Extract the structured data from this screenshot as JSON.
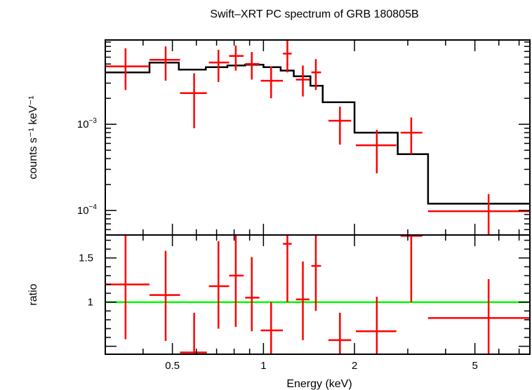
{
  "chart_data": {
    "type": "scatter",
    "title": "Swift–XRT PC spectrum of GRB 180805B",
    "xlabel": "Energy (keV)",
    "xscale": "log",
    "xlim": [
      0.3,
      7.6
    ],
    "xticks": [
      {
        "value": 0.5,
        "label": "0.5"
      },
      {
        "value": 1,
        "label": "1"
      },
      {
        "value": 2,
        "label": "2"
      },
      {
        "value": 5,
        "label": "5"
      }
    ],
    "colors": {
      "data": "#ff0000",
      "model": "#000000",
      "unity": "#00ff00"
    },
    "panels": [
      {
        "name": "spectrum",
        "ylabel": "counts s⁻¹ keV⁻¹",
        "yscale": "log",
        "ylim": [
          5.2e-05,
          0.0095
        ],
        "yticks": [
          {
            "value": 0.001,
            "mantissa": "10",
            "exponent": "−3"
          },
          {
            "value": 0.0001,
            "mantissa": "10",
            "exponent": "−4"
          }
        ],
        "data": [
          {
            "x": 0.35,
            "xlo": 0.3,
            "xhi": 0.42,
            "y": 0.0047,
            "ylo": 0.0025,
            "yhi": 0.0076
          },
          {
            "x": 0.475,
            "xlo": 0.42,
            "xhi": 0.53,
            "y": 0.0056,
            "ylo": 0.0032,
            "yhi": 0.008
          },
          {
            "x": 0.59,
            "xlo": 0.53,
            "xhi": 0.65,
            "y": 0.0023,
            "ylo": 0.0009,
            "yhi": 0.0039
          },
          {
            "x": 0.71,
            "xlo": 0.66,
            "xhi": 0.77,
            "y": 0.0052,
            "ylo": 0.0031,
            "yhi": 0.0073
          },
          {
            "x": 0.81,
            "xlo": 0.77,
            "xhi": 0.86,
            "y": 0.0062,
            "ylo": 0.0042,
            "yhi": 0.0082
          },
          {
            "x": 0.915,
            "xlo": 0.87,
            "xhi": 0.97,
            "y": 0.005,
            "ylo": 0.0033,
            "yhi": 0.0069
          },
          {
            "x": 1.06,
            "xlo": 0.98,
            "xhi": 1.16,
            "y": 0.0032,
            "ylo": 0.002,
            "yhi": 0.0047
          },
          {
            "x": 1.2,
            "xlo": 1.16,
            "xhi": 1.24,
            "y": 0.0066,
            "ylo": 0.004,
            "yhi": 0.0095
          },
          {
            "x": 1.35,
            "xlo": 1.28,
            "xhi": 1.42,
            "y": 0.0033,
            "ylo": 0.0021,
            "yhi": 0.0048
          },
          {
            "x": 1.49,
            "xlo": 1.44,
            "xhi": 1.55,
            "y": 0.004,
            "ylo": 0.0025,
            "yhi": 0.0057
          },
          {
            "x": 1.79,
            "xlo": 1.64,
            "xhi": 1.95,
            "y": 0.0011,
            "ylo": 0.00058,
            "yhi": 0.0016
          },
          {
            "x": 2.37,
            "xlo": 2.02,
            "xhi": 2.75,
            "y": 0.00057,
            "ylo": 0.00027,
            "yhi": 0.00086
          },
          {
            "x": 3.08,
            "xlo": 2.84,
            "xhi": 3.35,
            "y": 0.0008,
            "ylo": 0.00045,
            "yhi": 0.0012
          },
          {
            "x": 5.55,
            "xlo": 3.5,
            "xhi": 7.6,
            "y": 9.8e-05,
            "ylo": 5.2e-05,
            "yhi": 0.000155
          }
        ],
        "model_steps": [
          {
            "x0": 0.3,
            "x1": 0.42,
            "y": 0.004
          },
          {
            "x0": 0.42,
            "x1": 0.525,
            "y": 0.0052
          },
          {
            "x0": 0.525,
            "x1": 0.645,
            "y": 0.0043
          },
          {
            "x0": 0.645,
            "x1": 0.76,
            "y": 0.0046
          },
          {
            "x0": 0.76,
            "x1": 0.87,
            "y": 0.0048
          },
          {
            "x0": 0.87,
            "x1": 1.0,
            "y": 0.0049
          },
          {
            "x0": 1.0,
            "x1": 1.14,
            "y": 0.0046
          },
          {
            "x0": 1.14,
            "x1": 1.26,
            "y": 0.0042
          },
          {
            "x0": 1.26,
            "x1": 1.43,
            "y": 0.0036
          },
          {
            "x0": 1.43,
            "x1": 1.57,
            "y": 0.0028
          },
          {
            "x0": 1.57,
            "x1": 2.0,
            "y": 0.0018
          },
          {
            "x0": 2.0,
            "x1": 2.78,
            "y": 0.0008
          },
          {
            "x0": 2.78,
            "x1": 3.5,
            "y": 0.00045
          },
          {
            "x0": 3.5,
            "x1": 7.6,
            "y": 0.00012
          }
        ]
      },
      {
        "name": "ratio",
        "ylabel": "ratio",
        "yscale": "linear",
        "ylim": [
          0.41,
          1.76
        ],
        "yticks": [
          {
            "value": 1,
            "label": "1"
          },
          {
            "value": 1.5,
            "label": "1.5"
          }
        ],
        "unity_line": 1,
        "data": [
          {
            "x": 0.35,
            "xlo": 0.3,
            "xhi": 0.42,
            "y": 1.2,
            "ylo": 0.58,
            "yhi": 1.76
          },
          {
            "x": 0.475,
            "xlo": 0.42,
            "xhi": 0.53,
            "y": 1.08,
            "ylo": 0.56,
            "yhi": 1.58
          },
          {
            "x": 0.59,
            "xlo": 0.53,
            "xhi": 0.65,
            "y": 0.43,
            "ylo": 0.41,
            "yhi": 0.88
          },
          {
            "x": 0.71,
            "xlo": 0.66,
            "xhi": 0.77,
            "y": 1.18,
            "ylo": 0.7,
            "yhi": 1.69
          },
          {
            "x": 0.81,
            "xlo": 0.77,
            "xhi": 0.86,
            "y": 1.3,
            "ylo": 0.72,
            "yhi": 1.76
          },
          {
            "x": 0.915,
            "xlo": 0.87,
            "xhi": 0.97,
            "y": 1.05,
            "ylo": 0.67,
            "yhi": 1.51
          },
          {
            "x": 1.06,
            "xlo": 0.98,
            "xhi": 1.16,
            "y": 0.68,
            "ylo": 0.41,
            "yhi": 1.0
          },
          {
            "x": 1.2,
            "xlo": 1.16,
            "xhi": 1.24,
            "y": 1.66,
            "ylo": 1.0,
            "yhi": 1.76
          },
          {
            "x": 1.35,
            "xlo": 1.28,
            "xhi": 1.42,
            "y": 1.03,
            "ylo": 0.57,
            "yhi": 1.46
          },
          {
            "x": 1.49,
            "xlo": 1.44,
            "xhi": 1.55,
            "y": 1.41,
            "ylo": 0.9,
            "yhi": 1.76
          },
          {
            "x": 1.79,
            "xlo": 1.64,
            "xhi": 1.95,
            "y": 0.57,
            "ylo": 0.41,
            "yhi": 0.88
          },
          {
            "x": 2.37,
            "xlo": 2.02,
            "xhi": 2.75,
            "y": 0.67,
            "ylo": 0.41,
            "yhi": 1.06
          },
          {
            "x": 3.08,
            "xlo": 2.84,
            "xhi": 3.35,
            "y": 1.75,
            "ylo": 1.0,
            "yhi": 1.76
          },
          {
            "x": 5.55,
            "xlo": 3.5,
            "xhi": 7.6,
            "y": 0.82,
            "ylo": 0.41,
            "yhi": 1.26
          }
        ]
      }
    ]
  }
}
